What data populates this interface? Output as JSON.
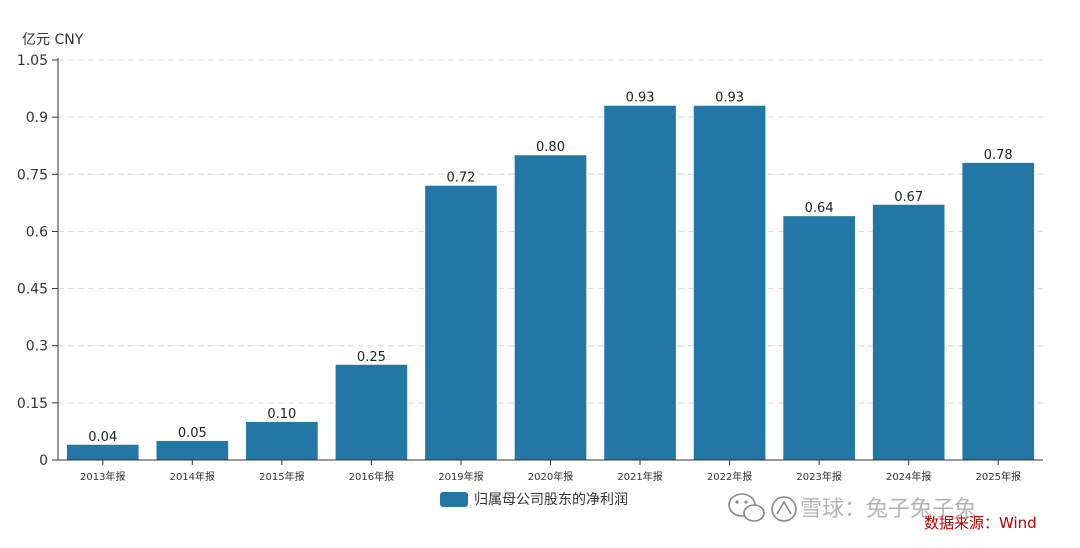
{
  "chart_data": {
    "type": "bar",
    "unit_label": "亿元  CNY",
    "categories": [
      "2013年报",
      "2014年报",
      "2015年报",
      "2016年报",
      "2019年报",
      "2020年报",
      "2021年报",
      "2022年报",
      "2023年报",
      "2024年报",
      "2025年报"
    ],
    "series": [
      {
        "name": "归属母公司股东的净利润",
        "values": [
          0.04,
          0.05,
          0.1,
          0.25,
          0.72,
          0.8,
          0.93,
          0.93,
          0.64,
          0.67,
          0.78
        ],
        "labels": [
          "0.04",
          "0.05",
          "0.10",
          "0.25",
          "0.72",
          "0.80",
          "0.93",
          "0.93",
          "0.64",
          "0.67",
          "0.78"
        ],
        "color": "#2277a5"
      }
    ],
    "y_ticks": [
      "0",
      "0.15",
      "0.3",
      "0.45",
      "0.6",
      "0.75",
      "0.9",
      "1.05"
    ],
    "ylim": [
      0,
      1.05
    ],
    "grid": true,
    "legend_position": "bottom-center"
  },
  "source_note": "数据来源：Wind",
  "watermark": "雪球：兔子兔子兔"
}
